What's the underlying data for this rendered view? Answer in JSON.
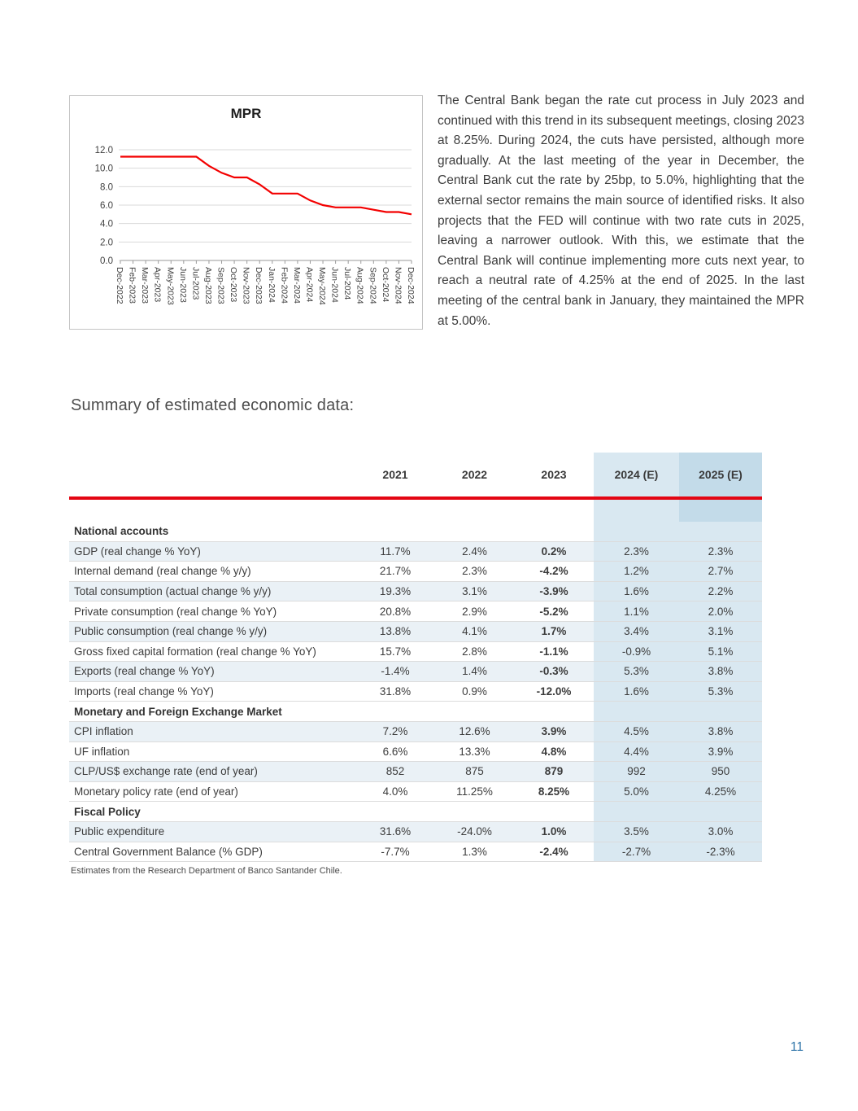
{
  "page_number": "11",
  "heading": "Summary of estimated economic data:",
  "narrative": "The Central Bank began the rate cut process in July 2023 and continued with this trend in its subsequent meetings, closing 2023 at 8.25%. During 2024, the cuts have persisted, although more gradually. At the last meeting of the year in December, the Central Bank cut the rate by 25bp, to 5.0%, highlighting that the external sector remains the main source of identified risks. It also projects that the FED will continue with two rate cuts in 2025, leaving a narrower outlook. With this, we estimate that the Central Bank will continue implementing more cuts next year, to reach a neutral rate of 4.25% at the end of 2025. In the last meeting of the central bank in January, they maintained the MPR at 5.00%.",
  "chart_data": {
    "type": "line",
    "title": "MPR",
    "x": [
      "Dec-2022",
      "Feb-2023",
      "Mar-2023",
      "Apr-2023",
      "May-2023",
      "Jun-2023",
      "Jul-2023",
      "Aug-2023",
      "Sep-2023",
      "Oct-2023",
      "Nov-2023",
      "Dec-2023",
      "Jan-2024",
      "Feb-2024",
      "Mar-2024",
      "Apr-2024",
      "May-2024",
      "Jun-2024",
      "Jul-2024",
      "Aug-2024",
      "Sep-2024",
      "Oct-2024",
      "Nov-2024",
      "Dec-2024"
    ],
    "values": [
      11.25,
      11.25,
      11.25,
      11.25,
      11.25,
      11.25,
      11.25,
      10.25,
      9.5,
      9.0,
      9.0,
      8.25,
      7.25,
      7.25,
      7.25,
      6.5,
      6.0,
      5.75,
      5.75,
      5.75,
      5.5,
      5.25,
      5.25,
      5.0
    ],
    "ylim": [
      0,
      12
    ],
    "yticks": [
      0,
      2,
      4,
      6,
      8,
      10,
      12
    ],
    "grid": "horizontal",
    "legend": "none",
    "line_color": "#f30000",
    "xlabel": "",
    "ylabel": ""
  },
  "table": {
    "columns": [
      "",
      "2021",
      "2022",
      "2023",
      "2024 (E)",
      "2025 (E)"
    ],
    "rows": [
      {
        "type": "section",
        "label": "National accounts"
      },
      {
        "type": "data",
        "label": "GDP (real change % YoY)",
        "values": [
          "11.7%",
          "2.4%",
          "0.2%",
          "2.3%",
          "2.3%"
        ]
      },
      {
        "type": "data",
        "label": "Internal demand (real change % y/y)",
        "values": [
          "21.7%",
          "2.3%",
          "-4.2%",
          "1.2%",
          "2.7%"
        ]
      },
      {
        "type": "data",
        "label": "Total consumption (actual change % y/y)",
        "values": [
          "19.3%",
          "3.1%",
          "-3.9%",
          "1.6%",
          "2.2%"
        ]
      },
      {
        "type": "data",
        "label": "Private consumption (real change % YoY)",
        "values": [
          "20.8%",
          "2.9%",
          "-5.2%",
          "1.1%",
          "2.0%"
        ]
      },
      {
        "type": "data",
        "label": "Public consumption (real change % y/y)",
        "values": [
          "13.8%",
          "4.1%",
          "1.7%",
          "3.4%",
          "3.1%"
        ]
      },
      {
        "type": "data",
        "label": "Gross fixed capital formation (real change % YoY)",
        "values": [
          "15.7%",
          "2.8%",
          "-1.1%",
          "-0.9%",
          "5.1%"
        ]
      },
      {
        "type": "data",
        "label": "Exports (real change % YoY)",
        "values": [
          "-1.4%",
          "1.4%",
          "-0.3%",
          "5.3%",
          "3.8%"
        ]
      },
      {
        "type": "data",
        "label": "Imports (real change % YoY)",
        "values": [
          "31.8%",
          "0.9%",
          "-12.0%",
          "1.6%",
          "5.3%"
        ]
      },
      {
        "type": "section",
        "label": "Monetary and Foreign Exchange Market"
      },
      {
        "type": "data",
        "label": "CPI inflation",
        "values": [
          "7.2%",
          "12.6%",
          "3.9%",
          "4.5%",
          "3.8%"
        ]
      },
      {
        "type": "data",
        "label": "UF inflation",
        "values": [
          "6.6%",
          "13.3%",
          "4.8%",
          "4.4%",
          "3.9%"
        ]
      },
      {
        "type": "data",
        "label": "CLP/US$ exchange rate (end of year)",
        "values": [
          "852",
          "875",
          "879",
          "992",
          "950"
        ]
      },
      {
        "type": "data",
        "label": "Monetary policy rate (end of year)",
        "values": [
          "4.0%",
          "11.25%",
          "8.25%",
          "5.0%",
          "4.25%"
        ]
      },
      {
        "type": "section",
        "label": "Fiscal Policy"
      },
      {
        "type": "data",
        "label": "Public expenditure",
        "values": [
          "31.6%",
          "-24.0%",
          "1.0%",
          "3.5%",
          "3.0%"
        ]
      },
      {
        "type": "data",
        "label": "Central Government Balance (% GDP)",
        "values": [
          "-7.7%",
          "1.3%",
          "-2.4%",
          "-2.7%",
          "-2.3%"
        ]
      }
    ],
    "footnote": "Estimates from the Research Department of Banco Santander Chile."
  },
  "colors": {
    "accent_red": "#e30613",
    "e_col_tint": "#d9e8f1",
    "e_col_header_2025": "#c3dbe9",
    "row_shade": "#eaf1f6",
    "page_number_blue": "#2e74a8"
  }
}
